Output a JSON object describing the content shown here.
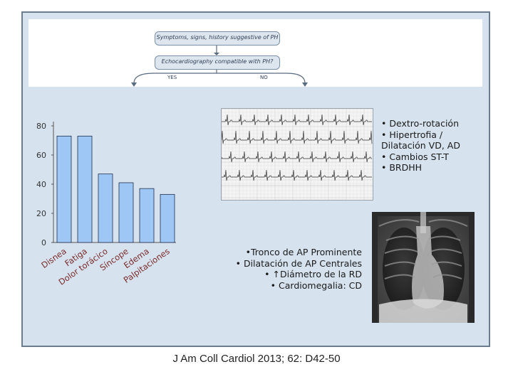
{
  "flowchart": {
    "box1": "Symptoms, signs, history suggestive of PH",
    "box2": "Echocardiography compatible with PH?",
    "yes_label": "YES",
    "no_label": "NO"
  },
  "chart_data": {
    "type": "bar",
    "categories": [
      "Disnea",
      "Fatiga",
      "Dolor torácico",
      "Síncope",
      "Edema",
      "Palpitaciones"
    ],
    "values": [
      73,
      73,
      47,
      41,
      37,
      33
    ],
    "ylim": [
      0,
      80
    ],
    "yticks": [
      "0",
      "20",
      "40",
      "60",
      "80"
    ],
    "title": "",
    "xlabel": "",
    "ylabel": "",
    "bar_color": "#9ec7f5",
    "bar_stroke": "#1f2f4f",
    "grid": false
  },
  "ecg_findings": [
    "Dextro-rotación",
    "Hipertrofia / Dilatación VD, AD",
    "Cambios ST-T",
    "BRDHH"
  ],
  "xray_findings": [
    {
      "prefix": "•",
      "text": "Tronco de AP Prominente"
    },
    {
      "prefix": "•",
      "text": "Dilatación de AP Centrales"
    },
    {
      "prefix": "• ↑",
      "text": "Diámetro de la RD"
    },
    {
      "prefix": "•",
      "text": "Cardiomegalia: CD"
    }
  ],
  "citation": "J Am Coll Cardiol 2013; 62: D42-50",
  "colors": {
    "panel_bg": "#d6e2ee",
    "panel_border": "#6d7c8c",
    "bar": "#9ec7f5"
  }
}
